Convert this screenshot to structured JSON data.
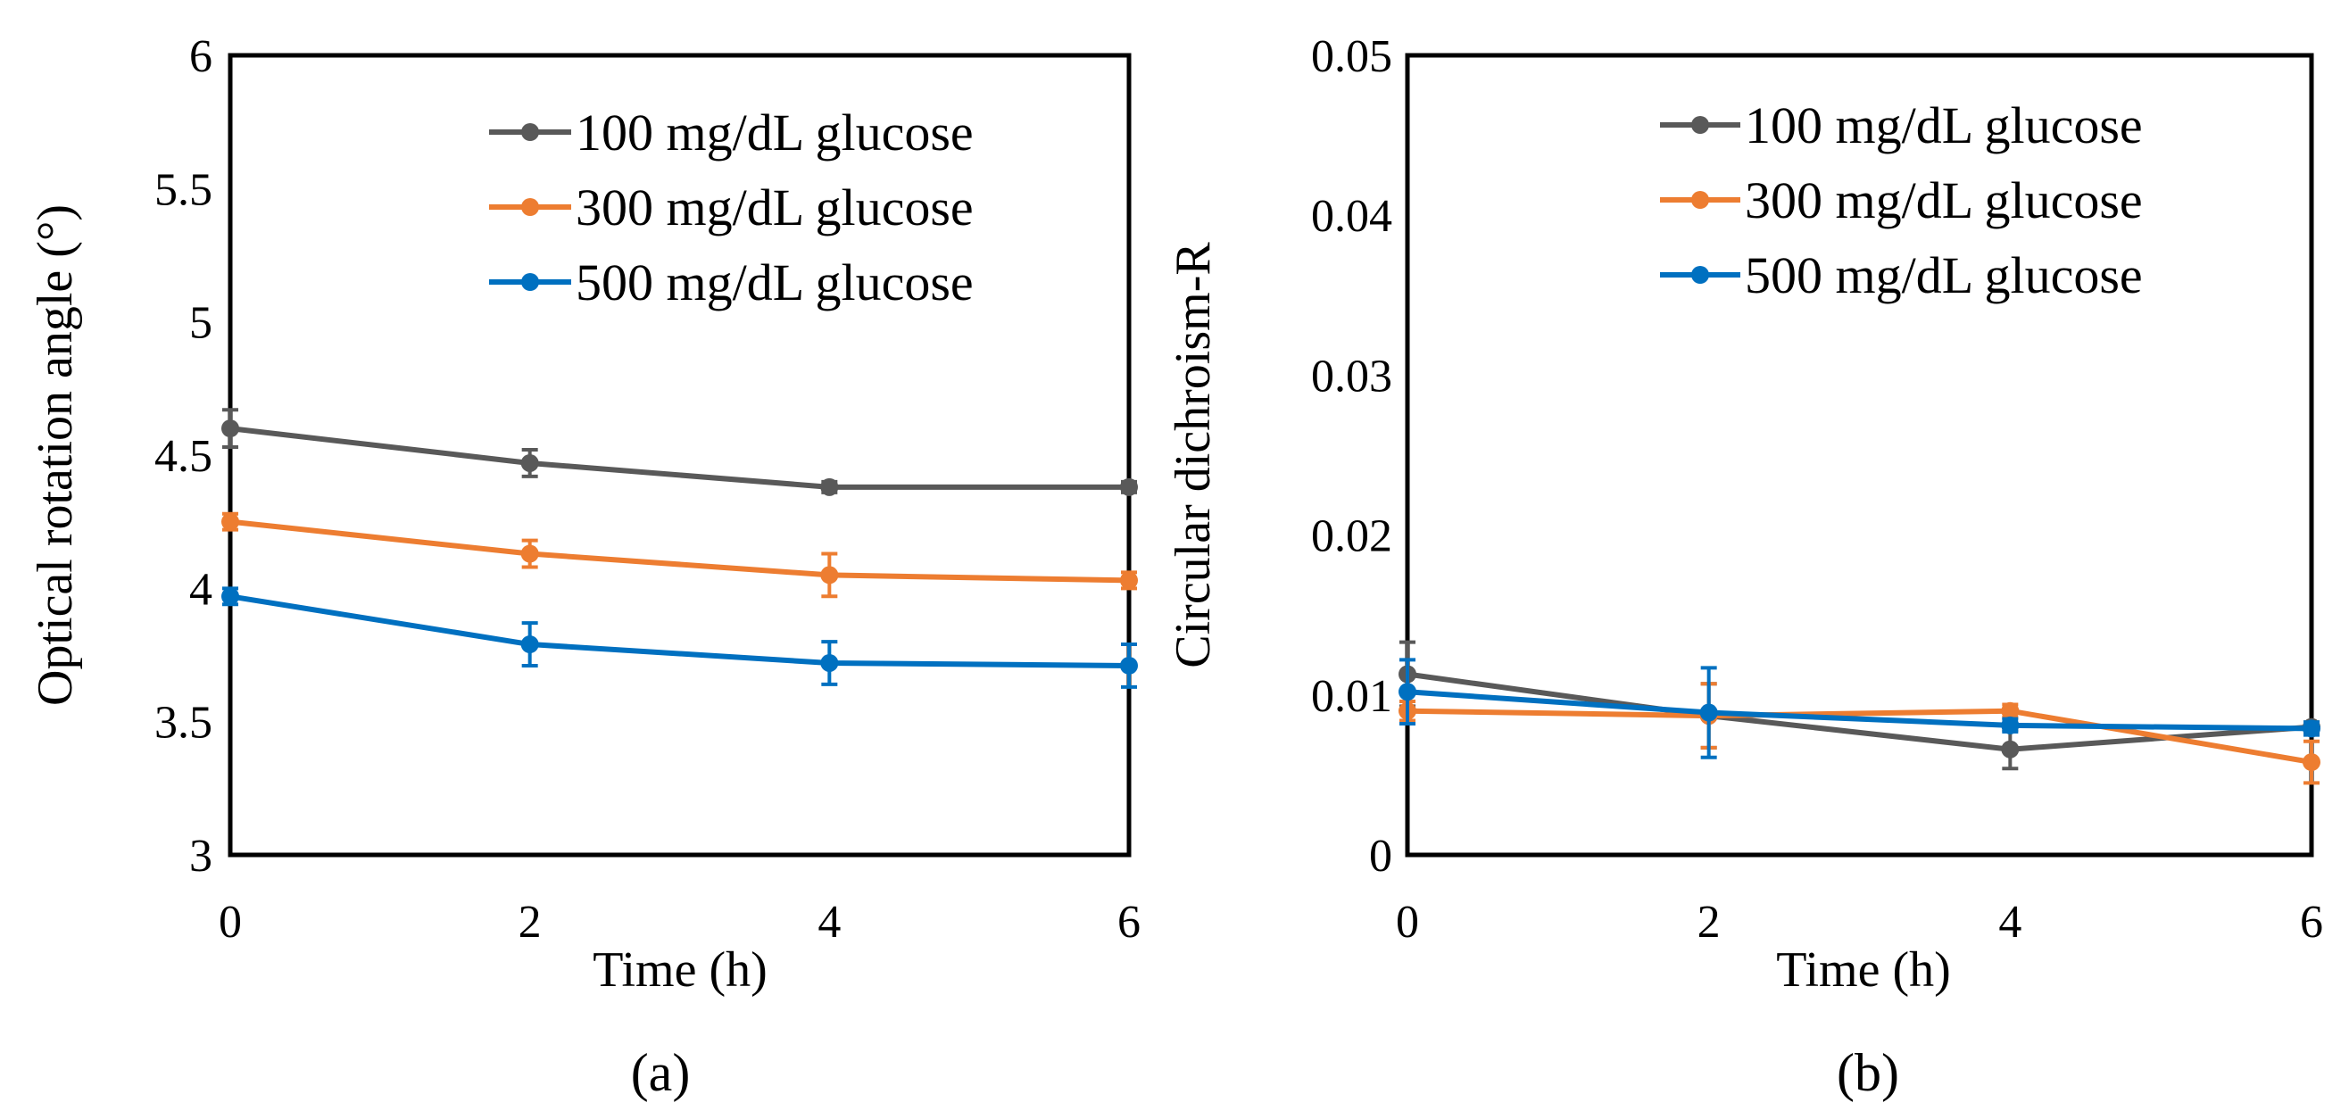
{
  "chart_data": [
    {
      "type": "line",
      "panel_label": "(a)",
      "xlabel": "Time (h)",
      "ylabel": "Optical rotation angle (°)",
      "x": [
        0,
        2,
        4,
        6
      ],
      "xticks": [
        "0",
        "2",
        "4",
        "6"
      ],
      "yticks": [
        "3",
        "3.5",
        "4",
        "4.5",
        "5",
        "5.5",
        "6"
      ],
      "xlim": [
        0,
        6
      ],
      "ylim": [
        3,
        6
      ],
      "grid": false,
      "legend_position": "top-right",
      "series": [
        {
          "name": "100 mg/dL glucose",
          "color": "#595959",
          "marker": "circle",
          "values": [
            4.6,
            4.47,
            4.38,
            4.38
          ],
          "errors": [
            0.07,
            0.05,
            0.02,
            0.02
          ]
        },
        {
          "name": "300 mg/dL glucose",
          "color": "#ED7D31",
          "marker": "circle",
          "values": [
            4.25,
            4.13,
            4.05,
            4.03
          ],
          "errors": [
            0.03,
            0.05,
            0.08,
            0.03
          ]
        },
        {
          "name": "500 mg/dL glucose",
          "color": "#0070C0",
          "marker": "circle",
          "values": [
            3.97,
            3.79,
            3.72,
            3.71
          ],
          "errors": [
            0.03,
            0.08,
            0.08,
            0.08
          ]
        }
      ]
    },
    {
      "type": "line",
      "panel_label": "(b)",
      "xlabel": "Time (h)",
      "ylabel": "Circular dichroism-R",
      "x": [
        0,
        2,
        4,
        6
      ],
      "xticks": [
        "0",
        "2",
        "4",
        "6"
      ],
      "yticks": [
        "0",
        "0.01",
        "0.02",
        "0.03",
        "0.04",
        "0.05"
      ],
      "xlim": [
        0,
        6
      ],
      "ylim": [
        0,
        0.05
      ],
      "grid": false,
      "legend_position": "top-right",
      "series": [
        {
          "name": "100 mg/dL glucose",
          "color": "#595959",
          "marker": "circle",
          "values": [
            0.0113,
            0.0087,
            0.0066,
            0.008
          ],
          "errors": [
            0.002,
            0.002,
            0.0012,
            0.0003
          ]
        },
        {
          "name": "300 mg/dL glucose",
          "color": "#ED7D31",
          "marker": "circle",
          "values": [
            0.009,
            0.0087,
            0.009,
            0.0058
          ],
          "errors": [
            0.0006,
            0.002,
            0.0004,
            0.0013
          ]
        },
        {
          "name": "500 mg/dL glucose",
          "color": "#0070C0",
          "marker": "circle",
          "values": [
            0.0102,
            0.0089,
            0.0081,
            0.0079
          ],
          "errors": [
            0.002,
            0.0028,
            0.0004,
            0.0004
          ]
        }
      ]
    }
  ]
}
